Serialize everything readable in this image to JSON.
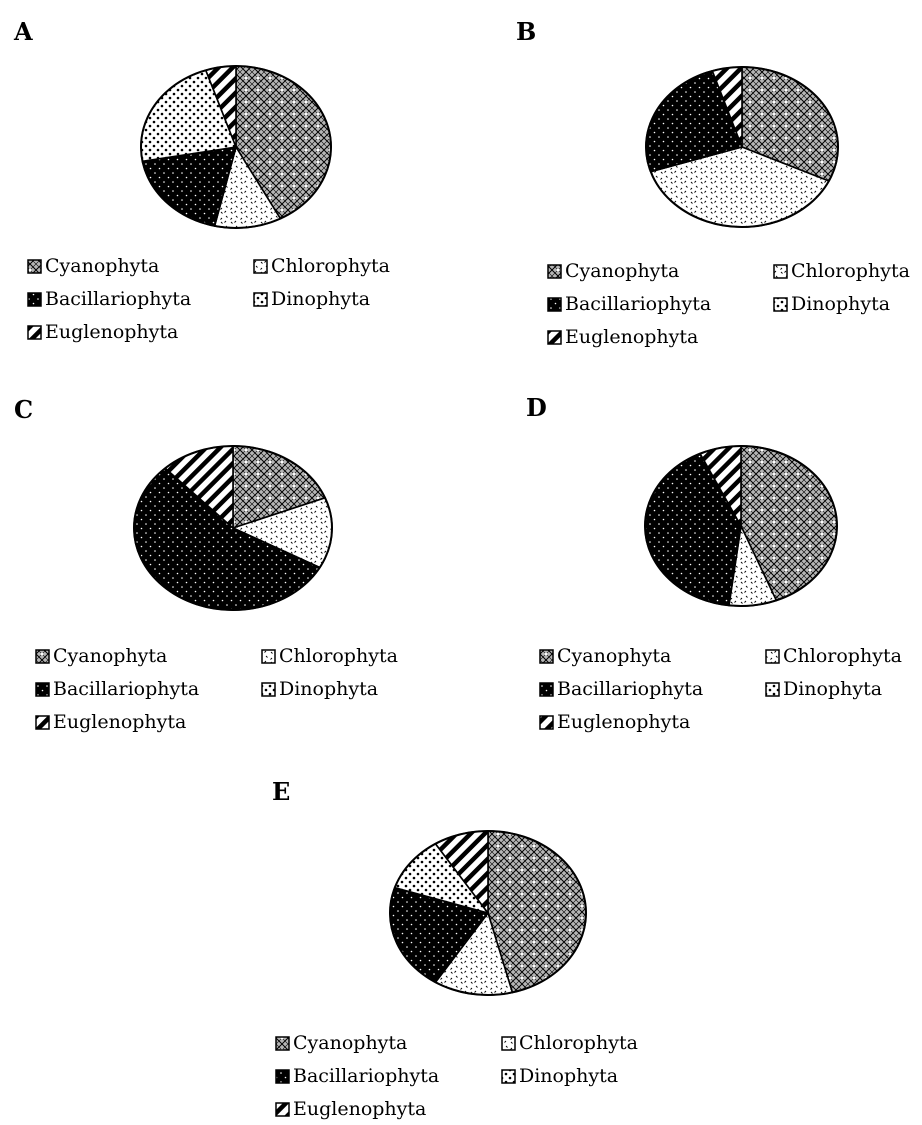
{
  "chart_data": [
    {
      "type": "pie",
      "panel": "A",
      "categories": [
        "Cyanophyta",
        "Chlorophyta",
        "Bacillariophyta",
        "Dinophyta",
        "Euglenophyta"
      ],
      "values": [
        41,
        11,
        18,
        22,
        5
      ],
      "start_angle_deg": 0,
      "direction": "clockwise"
    },
    {
      "type": "pie",
      "panel": "B",
      "categories": [
        "Cyanophyta",
        "Chlorophyta",
        "Bacillariophyta",
        "Dinophyta",
        "Euglenophyta"
      ],
      "values": [
        32,
        38,
        25,
        0,
        5
      ],
      "start_angle_deg": 0,
      "direction": "clockwise"
    },
    {
      "type": "pie",
      "panel": "C",
      "categories": [
        "Cyanophyta",
        "Chlorophyta",
        "Bacillariophyta",
        "Dinophyta",
        "Euglenophyta"
      ],
      "values": [
        19,
        14,
        55,
        0,
        12
      ],
      "start_angle_deg": 0,
      "direction": "clockwise"
    },
    {
      "type": "pie",
      "panel": "D",
      "categories": [
        "Cyanophyta",
        "Chlorophyta",
        "Bacillariophyta",
        "Dinophyta",
        "Euglenophyta"
      ],
      "values": [
        44,
        8,
        41,
        0,
        7
      ],
      "start_angle_deg": 0,
      "direction": "clockwise"
    },
    {
      "type": "pie",
      "panel": "E",
      "categories": [
        "Cyanophyta",
        "Chlorophyta",
        "Bacillariophyta",
        "Dinophyta",
        "Euglenophyta"
      ],
      "values": [
        46,
        13,
        21,
        11,
        9
      ],
      "start_angle_deg": 0,
      "direction": "clockwise"
    }
  ],
  "legend": [
    "Cyanophyta",
    "Chlorophyta",
    "Bacillariophyta",
    "Dinophyta",
    "Euglenophyta"
  ],
  "patterns": {
    "Cyanophyta": "crosshatch-diamond",
    "Chlorophyta": "sparse-dots",
    "Bacillariophyta": "black-dots",
    "Dinophyta": "dense-dots",
    "Euglenophyta": "diagonal-stripes"
  },
  "colors": {
    "ink": "#000000",
    "paper": "#ffffff"
  }
}
